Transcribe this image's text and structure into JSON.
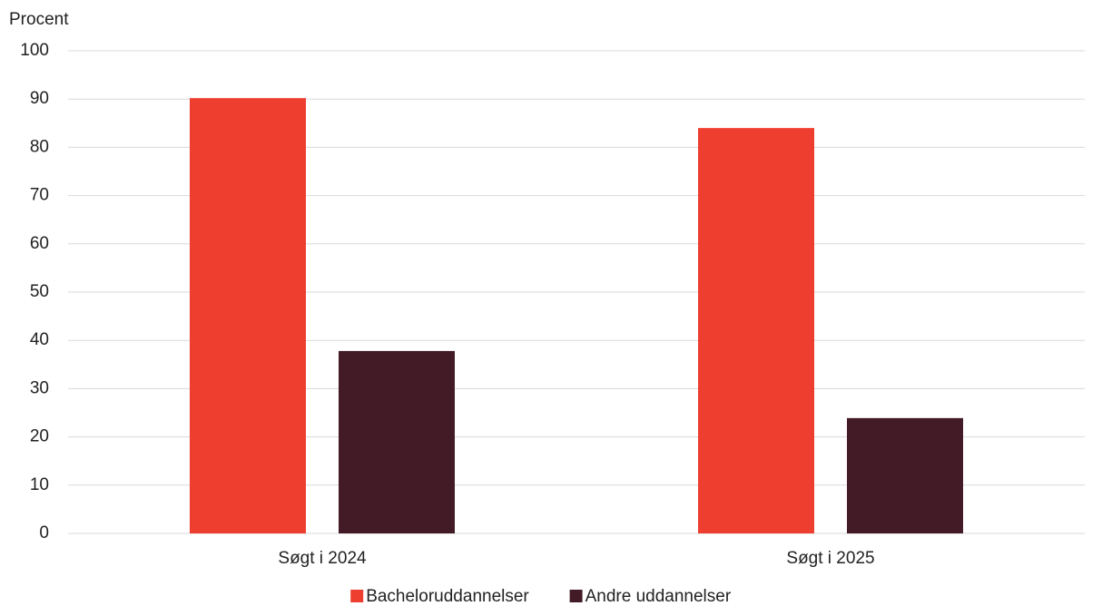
{
  "chart_data": {
    "type": "bar",
    "y_label": "Procent",
    "categories": [
      "Søgt i 2024",
      "Søgt i 2025"
    ],
    "series": [
      {
        "name": "Bacheloruddannelser",
        "color": "#ee3e2f",
        "values": [
          90.2,
          84
        ]
      },
      {
        "name": "Andre uddannelser",
        "color": "#431b27",
        "values": [
          37.8,
          23.9
        ]
      }
    ],
    "ylim": [
      0,
      100
    ],
    "yticks": [
      0,
      10,
      20,
      30,
      40,
      50,
      60,
      70,
      80,
      90,
      100
    ],
    "grid": true,
    "legend": "bottom"
  }
}
